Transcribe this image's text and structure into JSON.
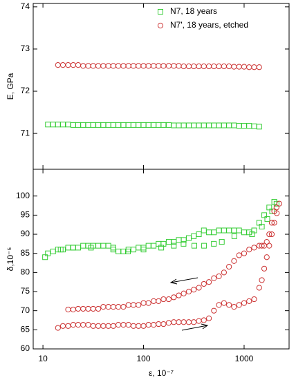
{
  "chart_data": [
    {
      "type": "scatter",
      "ylabel": "E, GPa",
      "xscale": "log",
      "xlim": [
        8,
        2800
      ],
      "ylim": [
        70.15,
        74.08
      ],
      "xticks": [
        10,
        100,
        1000
      ],
      "yticks": [
        71,
        72,
        73,
        74
      ],
      "legend": "upper center",
      "series": [
        {
          "name": "N7,  18 years",
          "color": "#33cc33",
          "marker": "square",
          "x": [
            11.2,
            12.6,
            14.1,
            15.8,
            17.8,
            20,
            22.4,
            25.1,
            28.2,
            31.6,
            35.5,
            39.8,
            44.7,
            50.1,
            56.2,
            63.1,
            70.8,
            79.4,
            89.1,
            100,
            112,
            126,
            141,
            158,
            178,
            200,
            224,
            251,
            282,
            316,
            355,
            398,
            447,
            501,
            562,
            631,
            708,
            794,
            891,
            1000,
            1122,
            1259,
            1413
          ],
          "values": [
            71.21,
            71.21,
            71.21,
            71.21,
            71.21,
            71.2,
            71.2,
            71.2,
            71.2,
            71.2,
            71.2,
            71.2,
            71.2,
            71.2,
            71.2,
            71.2,
            71.2,
            71.2,
            71.2,
            71.2,
            71.2,
            71.2,
            71.2,
            71.2,
            71.2,
            71.19,
            71.19,
            71.19,
            71.19,
            71.19,
            71.19,
            71.19,
            71.19,
            71.19,
            71.19,
            71.19,
            71.19,
            71.19,
            71.18,
            71.18,
            71.18,
            71.17,
            71.16
          ]
        },
        {
          "name": "N7', 18 years, etched",
          "color": "#cc3333",
          "marker": "circle",
          "x": [
            14.1,
            15.8,
            17.8,
            20,
            22.4,
            25.1,
            28.2,
            31.6,
            35.5,
            39.8,
            44.7,
            50.1,
            56.2,
            63.1,
            70.8,
            79.4,
            89.1,
            100,
            112,
            126,
            141,
            158,
            178,
            200,
            224,
            251,
            282,
            316,
            355,
            398,
            447,
            501,
            562,
            631,
            708,
            794,
            891,
            1000,
            1122,
            1259,
            1413
          ],
          "values": [
            72.62,
            72.62,
            72.62,
            72.62,
            72.62,
            72.6,
            72.6,
            72.6,
            72.6,
            72.6,
            72.6,
            72.6,
            72.6,
            72.6,
            72.6,
            72.6,
            72.6,
            72.6,
            72.6,
            72.6,
            72.6,
            72.6,
            72.6,
            72.6,
            72.6,
            72.59,
            72.59,
            72.59,
            72.59,
            72.59,
            72.59,
            72.59,
            72.59,
            72.59,
            72.59,
            72.58,
            72.58,
            72.58,
            72.57,
            72.57,
            72.57
          ]
        }
      ]
    },
    {
      "type": "scatter",
      "xlabel": "ε, 10⁻⁷",
      "ylabel": "δ,10⁻⁵",
      "xscale": "log",
      "xlim": [
        8,
        2800
      ],
      "ylim": [
        60,
        107
      ],
      "xticks": [
        10,
        100,
        1000
      ],
      "yticks": [
        60,
        65,
        70,
        75,
        80,
        85,
        90,
        95,
        100
      ],
      "series": [
        {
          "name": "N7,  18 years",
          "color": "#33cc33",
          "marker": "square",
          "x": [
            10.5,
            11.2,
            12.6,
            14.1,
            15.8,
            17.8,
            20,
            22.4,
            25.1,
            28.2,
            31.6,
            35.5,
            39.8,
            44.7,
            50.1,
            56.2,
            63.1,
            70.8,
            79.4,
            89.1,
            100,
            112,
            126,
            141,
            158,
            178,
            200,
            224,
            251,
            282,
            316,
            355,
            398,
            447,
            501,
            562,
            631,
            708,
            794,
            891,
            1000,
            1122,
            1259,
            1413,
            1585,
            1778,
            1995,
            2100,
            1900,
            1700,
            1500,
            1200,
            800,
            600,
            500,
            400,
            320,
            250,
            200,
            150,
            100,
            70,
            50,
            30,
            20,
            15
          ],
          "values": [
            84,
            85,
            85.5,
            86,
            86,
            86.5,
            86.5,
            86.5,
            87,
            87,
            87,
            87,
            87,
            87,
            86.5,
            85.5,
            85.5,
            86,
            86,
            86.5,
            86.5,
            87,
            87,
            87.5,
            87.5,
            88,
            88,
            88.5,
            88.5,
            89,
            89.5,
            90,
            91,
            90.5,
            90.5,
            91,
            91,
            91,
            91,
            91,
            90.5,
            90.5,
            91,
            93,
            95,
            97,
            98.5,
            98,
            96,
            94,
            92,
            90,
            89.5,
            88,
            87.5,
            87,
            87,
            87.5,
            87,
            86.5,
            86,
            85.5,
            86,
            86.5,
            86.5,
            86
          ]
        },
        {
          "name": "N7', 18 years, etched",
          "color": "#cc3333",
          "marker": "circle",
          "x": [
            14.1,
            15.8,
            17.8,
            20,
            22.4,
            25.1,
            28.2,
            31.6,
            35.5,
            39.8,
            44.7,
            50.1,
            56.2,
            63.1,
            70.8,
            79.4,
            89.1,
            100,
            112,
            126,
            141,
            158,
            178,
            200,
            224,
            251,
            282,
            316,
            355,
            398,
            447,
            501,
            562,
            631,
            708,
            794,
            891,
            1000,
            1122,
            1259,
            1413,
            1500,
            1585,
            1680,
            1778,
            1884,
            1995,
            2113,
            2239,
            2100,
            1995,
            1884,
            1778,
            1680,
            1585,
            1500,
            1413,
            1259,
            1122,
            1000,
            891,
            794,
            708,
            631,
            562,
            501,
            447,
            398,
            355,
            316,
            282,
            251,
            224,
            200,
            178,
            158,
            141,
            126,
            112,
            100,
            89.1,
            79.4,
            70.8,
            63.1,
            56.2,
            50.1,
            44.7,
            39.8,
            35.5,
            31.6,
            28.2,
            25.1,
            22.4,
            20,
            17.8
          ],
          "values": [
            65.5,
            66,
            66,
            66.3,
            66.3,
            66.3,
            66.3,
            66,
            66,
            66,
            66,
            66,
            66.3,
            66.3,
            66.3,
            66,
            66,
            66,
            66.3,
            66.3,
            66.5,
            66.5,
            66.8,
            67,
            67,
            67,
            67,
            67,
            67.3,
            67.5,
            68,
            70,
            71.5,
            72,
            71.5,
            71,
            71.5,
            72,
            72.5,
            73,
            76,
            78,
            81,
            84,
            87,
            90,
            93,
            95.5,
            98,
            97,
            96,
            93,
            90,
            88,
            87,
            87,
            87,
            86.5,
            86,
            85,
            84.5,
            83,
            81.5,
            80,
            79,
            78.5,
            77.5,
            77,
            76,
            75.5,
            75,
            74.5,
            74,
            73.5,
            73,
            73,
            72.5,
            72.5,
            72,
            72,
            71.5,
            71.5,
            71.5,
            71,
            71,
            71,
            71,
            71,
            70.5,
            70.5,
            70.5,
            70.5,
            70.5,
            70.3,
            70.3
          ]
        }
      ]
    }
  ]
}
